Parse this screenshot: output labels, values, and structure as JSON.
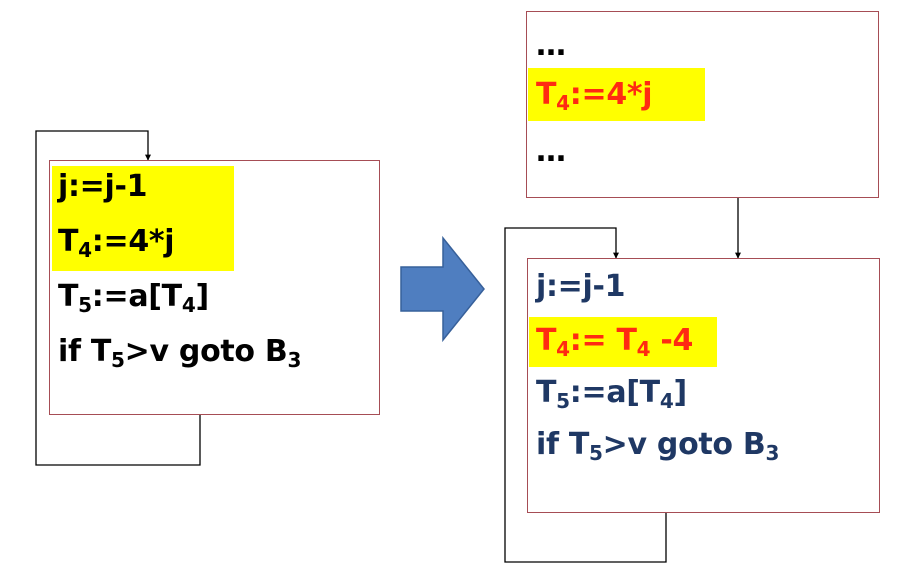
{
  "colors": {
    "box_border": "#a64d55",
    "highlight": "#ffff00",
    "arrow_fill": "#4f7ec0",
    "arrow_stroke": "#37609a",
    "text_black": "#000000",
    "text_navy": "#1f3864",
    "text_red": "#ff2a12"
  },
  "left_block": {
    "line1": "j:=j-1",
    "line2": {
      "main": "T",
      "sub": "4",
      "rest": ":=4*j"
    },
    "line3": {
      "main": "T",
      "sub": "5",
      "mid": ":=a[T",
      "sub2": "4",
      "end": "]"
    },
    "line4": {
      "pre": "if T",
      "sub": "5",
      "mid": ">v goto B",
      "sub2": "3"
    }
  },
  "right_top_block": {
    "dots1": "…",
    "line2": {
      "main": "T",
      "sub": "4",
      "rest": ":=4*j"
    },
    "dots2": "…"
  },
  "right_bottom_block": {
    "line1": "j:=j-1",
    "line2": {
      "main": "T",
      "sub": "4",
      "mid": ":= T",
      "sub2": "4",
      "end": " -4"
    },
    "line3": {
      "main": "T",
      "sub": "5",
      "mid": ":=a[T",
      "sub2": "4",
      "end": "]"
    },
    "line4": {
      "pre": "if T",
      "sub": "5",
      "mid": ">v goto B",
      "sub2": "3"
    }
  },
  "transform_arrow": {
    "icon": "right-block-arrow"
  }
}
